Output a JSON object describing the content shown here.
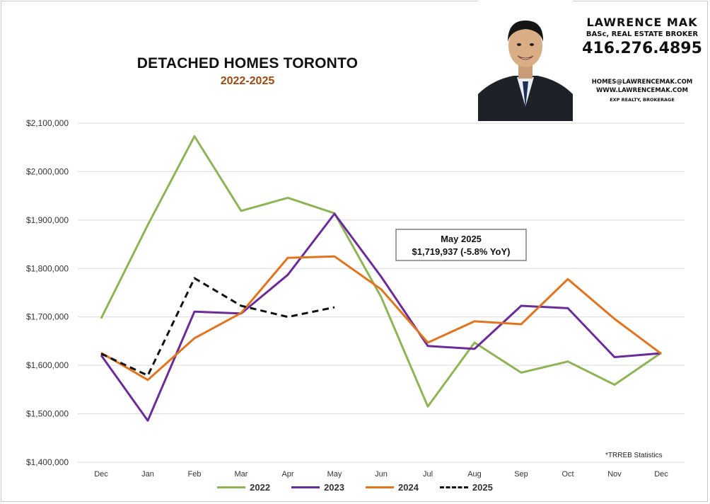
{
  "header": {
    "title": "DETACHED HOMES TORONTO",
    "subtitle": "2022-2025",
    "subtitle_color": "#9c4a12"
  },
  "agent": {
    "name": "LAWRENCE MAK",
    "credentials": "BASc, REAL ESTATE BROKER",
    "phone": "416.276.4895",
    "email": "HOMES@LAWRENCEMAK.COM",
    "website": "WWW.LAWRENCEMAK.COM",
    "brokerage": "EXP REALTY, BROKERAGE"
  },
  "footnote": "*TRREB Statistics",
  "callout": {
    "line1": "May 2025",
    "line2": "$1,719,937 (-5.8% YoY)"
  },
  "chart_data": {
    "type": "line",
    "title": "DETACHED HOMES TORONTO",
    "subtitle": "2022-2025",
    "categories": [
      "Dec",
      "Jan",
      "Feb",
      "Mar",
      "Apr",
      "May",
      "Jun",
      "Jul",
      "Aug",
      "Sep",
      "Oct",
      "Nov",
      "Dec"
    ],
    "y_ticks": [
      "$1,400,000",
      "$1,500,000",
      "$1,600,000",
      "$1,700,000",
      "$1,800,000",
      "$1,900,000",
      "$2,000,000",
      "$2,100,000"
    ],
    "ylim": [
      1400000,
      2100000
    ],
    "grid": "horizontal",
    "legend_position": "bottom",
    "series": [
      {
        "name": "2022",
        "color": "#8fb356",
        "dash": false,
        "values": [
          1697000,
          1890000,
          2073000,
          1919000,
          1946000,
          1914000,
          1741000,
          1515000,
          1647000,
          1585000,
          1608000,
          1560000,
          1626000
        ]
      },
      {
        "name": "2023",
        "color": "#6a2c98",
        "dash": false,
        "values": [
          1621000,
          1486000,
          1711000,
          1707000,
          1787000,
          1913000,
          1783000,
          1640000,
          1634000,
          1723000,
          1718000,
          1617000,
          1625000
        ]
      },
      {
        "name": "2024",
        "color": "#e0741f",
        "dash": false,
        "values": [
          1626000,
          1570000,
          1656000,
          1708000,
          1822000,
          1825000,
          1757000,
          1647000,
          1691000,
          1685000,
          1778000,
          1696000,
          1624000
        ]
      },
      {
        "name": "2025",
        "color": "#111111",
        "dash": true,
        "values": [
          1624000,
          1579000,
          1780000,
          1723000,
          1700000,
          1719937,
          null,
          null,
          null,
          null,
          null,
          null,
          null
        ]
      }
    ]
  }
}
